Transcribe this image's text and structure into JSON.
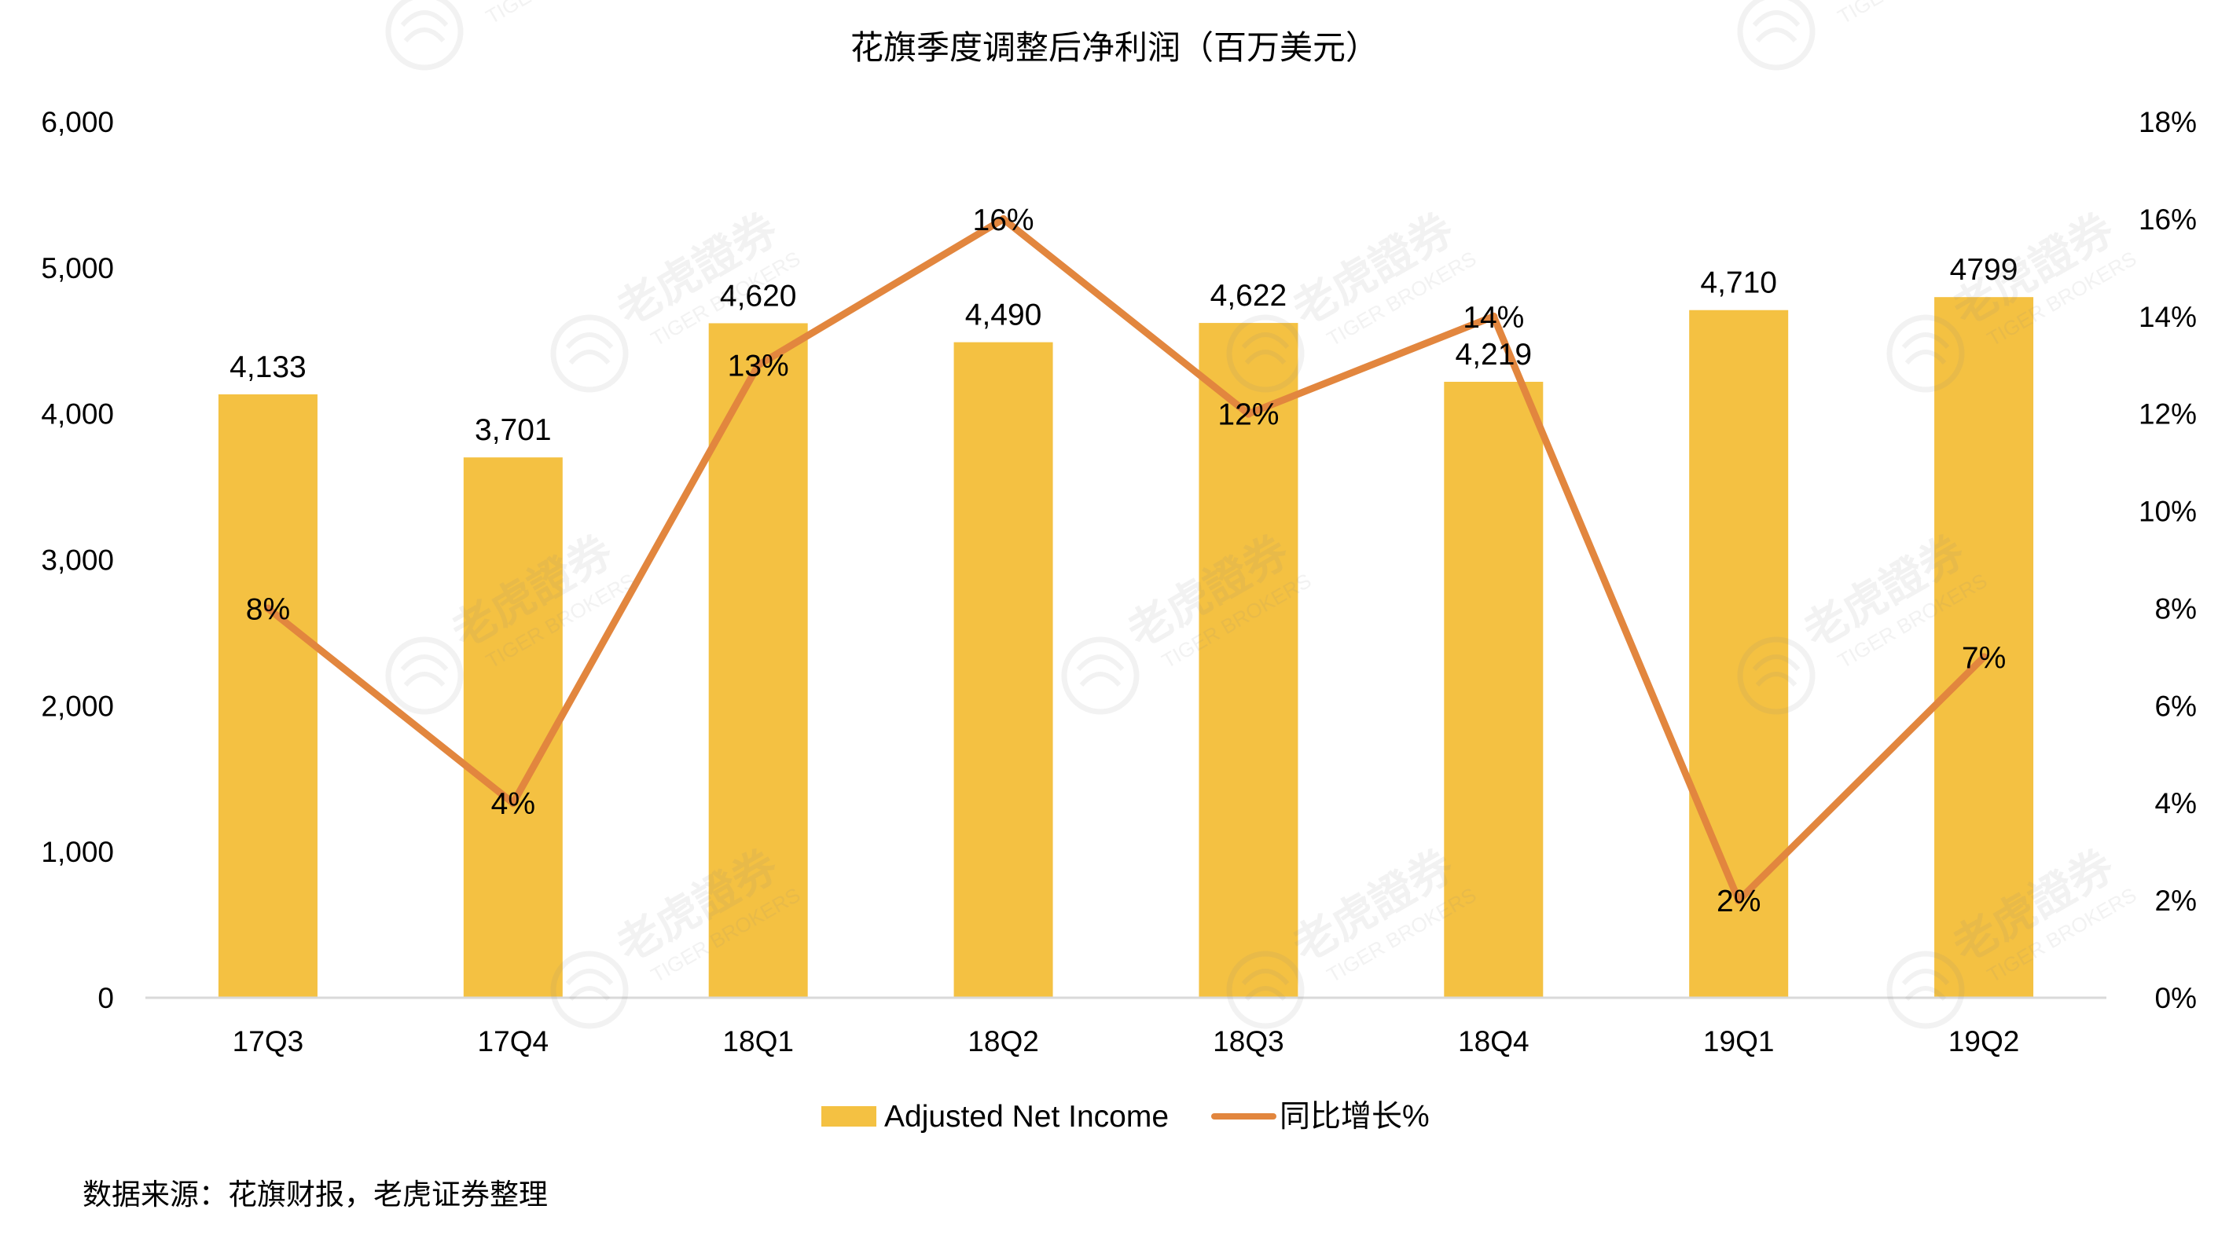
{
  "chart_data": {
    "type": "bar",
    "title": "花旗季度调整后净利润（百万美元）",
    "categories": [
      "17Q3",
      "17Q4",
      "18Q1",
      "18Q2",
      "18Q3",
      "18Q4",
      "19Q1",
      "19Q2"
    ],
    "series": [
      {
        "name": "Adjusted Net Income",
        "type": "bar",
        "axis": "left",
        "values": [
          4133,
          3701,
          4620,
          4490,
          4622,
          4219,
          4710,
          4799
        ],
        "labels": [
          "4,133",
          "3,701",
          "4,620",
          "4,490",
          "4,622",
          "4,219",
          "4,710",
          "4799"
        ]
      },
      {
        "name": "同比增长%",
        "type": "line",
        "axis": "right",
        "values": [
          8,
          4,
          13,
          16,
          12,
          14,
          2,
          7
        ],
        "labels": [
          "8%",
          "4%",
          "13%",
          "16%",
          "12%",
          "14%",
          "2%",
          "7%"
        ]
      }
    ],
    "y_left": {
      "range": [
        0,
        6000
      ],
      "ticks": [
        0,
        1000,
        2000,
        3000,
        4000,
        5000,
        6000
      ],
      "tick_labels": [
        "0",
        "1,000",
        "2,000",
        "3,000",
        "4,000",
        "5,000",
        "6,000"
      ]
    },
    "y_right": {
      "range": [
        0,
        18
      ],
      "ticks": [
        0,
        2,
        4,
        6,
        8,
        10,
        12,
        14,
        16,
        18
      ],
      "tick_labels": [
        "0%",
        "2%",
        "4%",
        "6%",
        "8%",
        "10%",
        "12%",
        "14%",
        "16%",
        "18%"
      ]
    },
    "grid": false,
    "legend": "bottom-center",
    "colors": {
      "bar": "#F4C142",
      "line": "#E2863E",
      "text": "#000000",
      "axis": "#d9d9d9"
    }
  },
  "source_note": "数据来源：花旗财报，老虎证券整理",
  "watermark": {
    "text_cn": "老虎證券",
    "text_en": "TIGER BROKERS",
    "icon": "tiger-logo-icon"
  }
}
